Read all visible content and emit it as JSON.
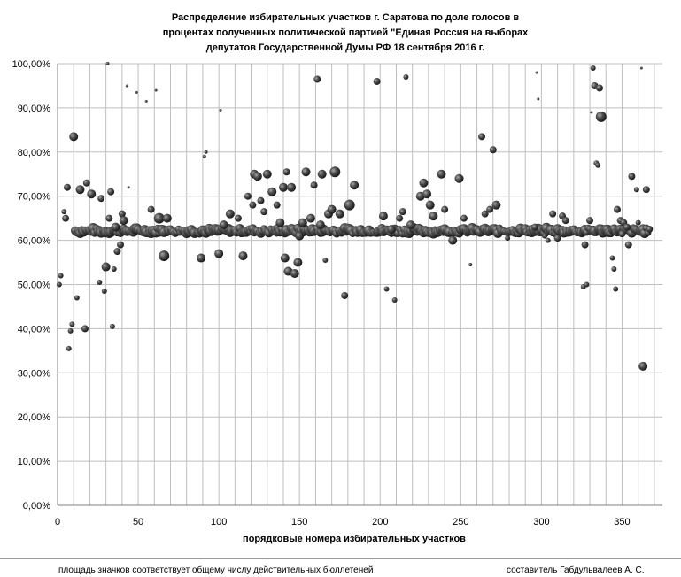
{
  "chart_data": {
    "type": "scatter",
    "title_lines": [
      "Распределение избирательных участков г. Саратова по доле голосов в",
      "процентах полученных политической партией \"Единая Россия на выборах",
      "депутатов Государственной Думы РФ 18 сентября 2016 г."
    ],
    "xlabel": "порядковые номера избирательных участков",
    "ylabel": "",
    "xlim": [
      0,
      375
    ],
    "ylim": [
      0,
      100
    ],
    "x_ticks": [
      "0",
      "50",
      "100",
      "150",
      "200",
      "250",
      "300",
      "350"
    ],
    "y_ticks": [
      "0,00%",
      "10,00%",
      "20,00%",
      "30,00%",
      "40,00%",
      "50,00%",
      "60,00%",
      "70,00%",
      "80,00%",
      "90,00%",
      "100,00%"
    ],
    "grid": true,
    "marker_size_meaning": "area ∝ number of valid ballots",
    "outliers": [
      {
        "x": 1,
        "y": 50.0,
        "s": 3
      },
      {
        "x": 2,
        "y": 52.0,
        "s": 3
      },
      {
        "x": 4,
        "y": 66.5,
        "s": 3
      },
      {
        "x": 5,
        "y": 65.0,
        "s": 4
      },
      {
        "x": 6,
        "y": 72.0,
        "s": 4
      },
      {
        "x": 7,
        "y": 35.5,
        "s": 3
      },
      {
        "x": 8,
        "y": 39.5,
        "s": 3
      },
      {
        "x": 9,
        "y": 41.0,
        "s": 3
      },
      {
        "x": 10,
        "y": 83.5,
        "s": 5
      },
      {
        "x": 12,
        "y": 47.0,
        "s": 3
      },
      {
        "x": 14,
        "y": 71.5,
        "s": 5
      },
      {
        "x": 17,
        "y": 40.0,
        "s": 4
      },
      {
        "x": 18,
        "y": 73.0,
        "s": 4
      },
      {
        "x": 21,
        "y": 70.5,
        "s": 5
      },
      {
        "x": 26,
        "y": 50.5,
        "s": 3
      },
      {
        "x": 27,
        "y": 69.5,
        "s": 4
      },
      {
        "x": 29,
        "y": 48.5,
        "s": 3
      },
      {
        "x": 30,
        "y": 54.0,
        "s": 5
      },
      {
        "x": 31,
        "y": 100.0,
        "s": 2
      },
      {
        "x": 32,
        "y": 65.0,
        "s": 4
      },
      {
        "x": 33,
        "y": 71.0,
        "s": 4
      },
      {
        "x": 34,
        "y": 40.5,
        "s": 3
      },
      {
        "x": 35,
        "y": 53.5,
        "s": 3
      },
      {
        "x": 36,
        "y": 63.0,
        "s": 5
      },
      {
        "x": 37,
        "y": 57.5,
        "s": 4
      },
      {
        "x": 39,
        "y": 59.0,
        "s": 4
      },
      {
        "x": 40,
        "y": 66.0,
        "s": 4
      },
      {
        "x": 41,
        "y": 64.5,
        "s": 5
      },
      {
        "x": 43,
        "y": 95.0,
        "s": 1.5
      },
      {
        "x": 44,
        "y": 72.0,
        "s": 1.5
      },
      {
        "x": 49,
        "y": 93.5,
        "s": 1.5
      },
      {
        "x": 55,
        "y": 91.5,
        "s": 1.5
      },
      {
        "x": 58,
        "y": 67.0,
        "s": 4
      },
      {
        "x": 61,
        "y": 94.0,
        "s": 1.5
      },
      {
        "x": 63,
        "y": 65.0,
        "s": 6
      },
      {
        "x": 66,
        "y": 56.5,
        "s": 6
      },
      {
        "x": 68,
        "y": 65.0,
        "s": 5
      },
      {
        "x": 89,
        "y": 56.0,
        "s": 5
      },
      {
        "x": 91,
        "y": 79.0,
        "s": 2
      },
      {
        "x": 92,
        "y": 80.0,
        "s": 2
      },
      {
        "x": 100,
        "y": 57.0,
        "s": 5
      },
      {
        "x": 101,
        "y": 89.5,
        "s": 1.5
      },
      {
        "x": 103,
        "y": 63.5,
        "s": 5
      },
      {
        "x": 107,
        "y": 66.0,
        "s": 5
      },
      {
        "x": 112,
        "y": 65.0,
        "s": 4
      },
      {
        "x": 115,
        "y": 56.5,
        "s": 5
      },
      {
        "x": 118,
        "y": 70.0,
        "s": 4
      },
      {
        "x": 121,
        "y": 68.0,
        "s": 4
      },
      {
        "x": 122,
        "y": 75.0,
        "s": 5
      },
      {
        "x": 124,
        "y": 74.5,
        "s": 5
      },
      {
        "x": 126,
        "y": 69.0,
        "s": 4
      },
      {
        "x": 128,
        "y": 66.5,
        "s": 4
      },
      {
        "x": 130,
        "y": 75.0,
        "s": 5
      },
      {
        "x": 133,
        "y": 71.0,
        "s": 5
      },
      {
        "x": 136,
        "y": 68.0,
        "s": 4
      },
      {
        "x": 138,
        "y": 64.0,
        "s": 5
      },
      {
        "x": 140,
        "y": 72.0,
        "s": 5
      },
      {
        "x": 141,
        "y": 56.0,
        "s": 5
      },
      {
        "x": 142,
        "y": 75.5,
        "s": 4
      },
      {
        "x": 143,
        "y": 53.0,
        "s": 5
      },
      {
        "x": 145,
        "y": 72.0,
        "s": 5
      },
      {
        "x": 147,
        "y": 52.5,
        "s": 5
      },
      {
        "x": 149,
        "y": 55.0,
        "s": 5
      },
      {
        "x": 150,
        "y": 61.0,
        "s": 5
      },
      {
        "x": 152,
        "y": 64.0,
        "s": 5
      },
      {
        "x": 154,
        "y": 75.5,
        "s": 5
      },
      {
        "x": 157,
        "y": 65.0,
        "s": 5
      },
      {
        "x": 159,
        "y": 72.5,
        "s": 4
      },
      {
        "x": 161,
        "y": 96.5,
        "s": 4
      },
      {
        "x": 163,
        "y": 63.5,
        "s": 5
      },
      {
        "x": 164,
        "y": 75.0,
        "s": 5
      },
      {
        "x": 166,
        "y": 55.5,
        "s": 3
      },
      {
        "x": 168,
        "y": 66.0,
        "s": 5
      },
      {
        "x": 170,
        "y": 67.0,
        "s": 5
      },
      {
        "x": 172,
        "y": 75.5,
        "s": 6
      },
      {
        "x": 175,
        "y": 66.0,
        "s": 5
      },
      {
        "x": 178,
        "y": 47.5,
        "s": 4
      },
      {
        "x": 181,
        "y": 68.0,
        "s": 6
      },
      {
        "x": 184,
        "y": 72.5,
        "s": 5
      },
      {
        "x": 198,
        "y": 96.0,
        "s": 4
      },
      {
        "x": 202,
        "y": 65.5,
        "s": 5
      },
      {
        "x": 204,
        "y": 49.0,
        "s": 3
      },
      {
        "x": 207,
        "y": 62.5,
        "s": 5
      },
      {
        "x": 209,
        "y": 46.5,
        "s": 3
      },
      {
        "x": 212,
        "y": 65.0,
        "s": 4
      },
      {
        "x": 214,
        "y": 66.5,
        "s": 4
      },
      {
        "x": 216,
        "y": 97.0,
        "s": 3
      },
      {
        "x": 219,
        "y": 63.5,
        "s": 5
      },
      {
        "x": 225,
        "y": 70.0,
        "s": 5
      },
      {
        "x": 227,
        "y": 73.0,
        "s": 5
      },
      {
        "x": 229,
        "y": 70.5,
        "s": 5
      },
      {
        "x": 231,
        "y": 68.0,
        "s": 5
      },
      {
        "x": 233,
        "y": 65.5,
        "s": 5
      },
      {
        "x": 238,
        "y": 75.0,
        "s": 5
      },
      {
        "x": 240,
        "y": 67.0,
        "s": 4
      },
      {
        "x": 245,
        "y": 60.0,
        "s": 5
      },
      {
        "x": 249,
        "y": 74.0,
        "s": 5
      },
      {
        "x": 252,
        "y": 65.0,
        "s": 4
      },
      {
        "x": 256,
        "y": 54.5,
        "s": 2
      },
      {
        "x": 263,
        "y": 83.5,
        "s": 4
      },
      {
        "x": 265,
        "y": 66.0,
        "s": 4
      },
      {
        "x": 268,
        "y": 67.0,
        "s": 4
      },
      {
        "x": 270,
        "y": 80.5,
        "s": 4
      },
      {
        "x": 272,
        "y": 68.0,
        "s": 5
      },
      {
        "x": 279,
        "y": 60.5,
        "s": 3
      },
      {
        "x": 296,
        "y": 63.0,
        "s": 4
      },
      {
        "x": 297,
        "y": 98.0,
        "s": 1.5
      },
      {
        "x": 298,
        "y": 92.0,
        "s": 1.5
      },
      {
        "x": 302,
        "y": 61.0,
        "s": 3
      },
      {
        "x": 304,
        "y": 60.0,
        "s": 3
      },
      {
        "x": 307,
        "y": 66.0,
        "s": 4
      },
      {
        "x": 310,
        "y": 60.5,
        "s": 4
      },
      {
        "x": 313,
        "y": 65.5,
        "s": 4
      },
      {
        "x": 315,
        "y": 64.5,
        "s": 4
      },
      {
        "x": 326,
        "y": 49.5,
        "s": 3
      },
      {
        "x": 327,
        "y": 59.0,
        "s": 4
      },
      {
        "x": 328,
        "y": 50.0,
        "s": 3
      },
      {
        "x": 330,
        "y": 64.5,
        "s": 4
      },
      {
        "x": 331,
        "y": 89.0,
        "s": 1.5
      },
      {
        "x": 332,
        "y": 99.0,
        "s": 3
      },
      {
        "x": 333,
        "y": 95.0,
        "s": 4
      },
      {
        "x": 334,
        "y": 77.5,
        "s": 3
      },
      {
        "x": 335,
        "y": 77.0,
        "s": 3
      },
      {
        "x": 336,
        "y": 94.5,
        "s": 4
      },
      {
        "x": 337,
        "y": 88.0,
        "s": 6
      },
      {
        "x": 344,
        "y": 56.0,
        "s": 3
      },
      {
        "x": 345,
        "y": 53.5,
        "s": 3
      },
      {
        "x": 346,
        "y": 49.0,
        "s": 3
      },
      {
        "x": 347,
        "y": 67.0,
        "s": 4
      },
      {
        "x": 349,
        "y": 64.5,
        "s": 4
      },
      {
        "x": 350,
        "y": 61.5,
        "s": 4
      },
      {
        "x": 351,
        "y": 64.0,
        "s": 4
      },
      {
        "x": 353,
        "y": 63.0,
        "s": 4
      },
      {
        "x": 354,
        "y": 59.0,
        "s": 4
      },
      {
        "x": 356,
        "y": 74.5,
        "s": 4
      },
      {
        "x": 359,
        "y": 71.5,
        "s": 3
      },
      {
        "x": 360,
        "y": 64.0,
        "s": 3
      },
      {
        "x": 362,
        "y": 99.0,
        "s": 1.5
      },
      {
        "x": 363,
        "y": 31.5,
        "s": 5
      },
      {
        "x": 365,
        "y": 71.5,
        "s": 4
      }
    ],
    "main_band": {
      "x_from": 11,
      "x_to": 367,
      "y_center": 62.2,
      "note": "dense cluster of polling stations near 62%"
    }
  },
  "footer": {
    "left": "площадь значков соответствует общему числу действительных бюллетеней",
    "right": "составитель Габдульвалеев А. С."
  },
  "colors": {
    "marker": "#404040",
    "grid": "#bfbfbf"
  }
}
